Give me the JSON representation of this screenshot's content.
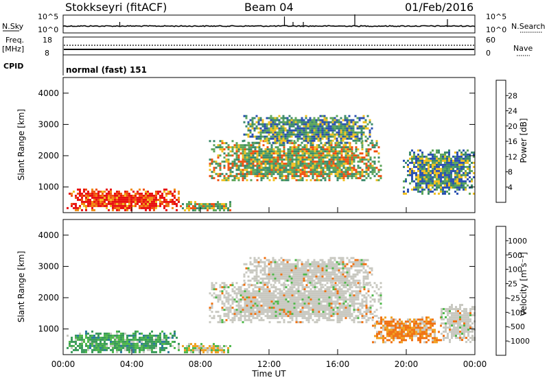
{
  "header": {
    "station": "Stokkseyri (fitACF)",
    "beam": "Beam 04",
    "date": "01/Feb/2016"
  },
  "noise_panel": {
    "left_label": "N.Sky",
    "left_ticks": [
      "10^5",
      "10^0"
    ],
    "right_label": "N.Search",
    "right_ticks": [
      "10^5",
      "10^0"
    ]
  },
  "freq_panel": {
    "left_label_1": "Freq.",
    "left_label_2": "[MHz]",
    "left_ticks": [
      "18",
      "8"
    ],
    "right_label": "Nave",
    "right_ticks": [
      "60",
      "0"
    ]
  },
  "cpid_panel": {
    "label": "CPID",
    "program": "normal (fast) 151"
  },
  "x_axis": {
    "title": "Time UT",
    "ticks": [
      "00:00",
      "04:00",
      "08:00",
      "12:00",
      "16:00",
      "20:00",
      "00:00"
    ]
  },
  "chart_data": [
    {
      "type": "heatmap",
      "panel": "power",
      "ylabel": "Slant Range [km]",
      "yticks": [
        "1000",
        "2000",
        "3000",
        "4000"
      ],
      "ylim": [
        180,
        4500
      ],
      "xlim_hours": [
        0,
        24
      ],
      "colorbar": {
        "label": "Power [dB]",
        "ticks": [
          "4",
          "8",
          "12",
          "16",
          "20",
          "24",
          "28"
        ],
        "colors": [
          "#1a1aff",
          "#2a4fb0",
          "#3a8a6a",
          "#5ca55a",
          "#f0c020",
          "#f08a10",
          "#f05010",
          "#e81010"
        ]
      },
      "regions": [
        {
          "t0": 0.2,
          "t1": 6.8,
          "r0": 250,
          "r1": 950,
          "level": "high"
        },
        {
          "t0": 6.8,
          "t1": 9.8,
          "r0": 250,
          "r1": 550,
          "level": "medium"
        },
        {
          "t0": 8.5,
          "t1": 18.5,
          "r0": 1200,
          "r1": 2500,
          "level": "medium"
        },
        {
          "t0": 10.5,
          "t1": 18.0,
          "r0": 2400,
          "r1": 3300,
          "level": "low"
        },
        {
          "t0": 19.8,
          "t1": 24.0,
          "r0": 800,
          "r1": 2200,
          "level": "low"
        }
      ]
    },
    {
      "type": "heatmap",
      "panel": "velocity",
      "ylabel": "Slant Range [km]",
      "yticks": [
        "1000",
        "2000",
        "3000",
        "4000"
      ],
      "ylim": [
        180,
        4500
      ],
      "xlim_hours": [
        0,
        24
      ],
      "colorbar": {
        "label": "Velocity [m s⁻¹]",
        "ticks": [
          "1000",
          "500",
          "100",
          "25",
          "-25",
          "-100",
          "-500",
          "-1000"
        ],
        "colors": [
          "#1a3fb0",
          "#2a7a9a",
          "#3a9a5a",
          "#4fb84a",
          "#c8c8c0",
          "#f0a020",
          "#f07010",
          "#e81010"
        ]
      },
      "regions": [
        {
          "t0": 0.2,
          "t1": 6.8,
          "r0": 250,
          "r1": 950,
          "level": "positive"
        },
        {
          "t0": 6.8,
          "t1": 9.8,
          "r0": 250,
          "r1": 550,
          "level": "mixed"
        },
        {
          "t0": 8.5,
          "t1": 18.5,
          "r0": 1200,
          "r1": 2500,
          "level": "neutral"
        },
        {
          "t0": 10.5,
          "t1": 18.0,
          "r0": 2400,
          "r1": 3300,
          "level": "neutral"
        },
        {
          "t0": 18.0,
          "t1": 22.0,
          "r0": 600,
          "r1": 1400,
          "level": "negative"
        },
        {
          "t0": 22.0,
          "t1": 24.0,
          "r0": 600,
          "r1": 1800,
          "level": "neutral"
        }
      ]
    }
  ]
}
